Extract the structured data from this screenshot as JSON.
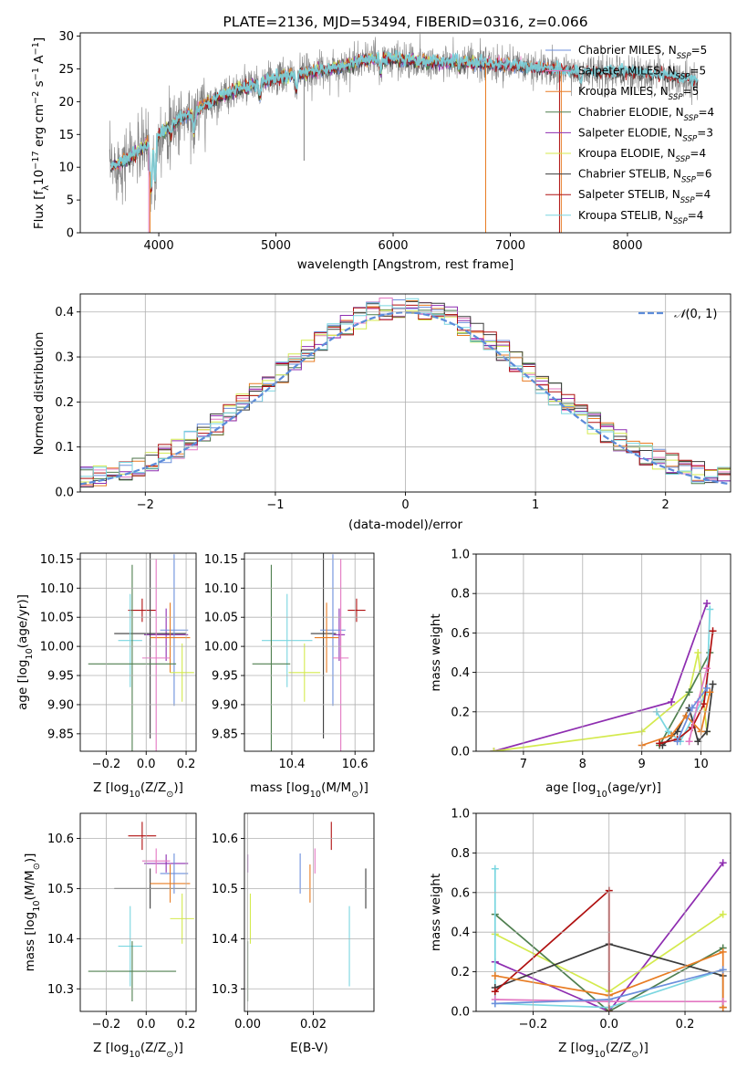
{
  "figure_title": "PLATE=2136, MJD=53494, FIBERID=0316, z=0.066",
  "colors": {
    "Chabrier MILES": "#6c8fdc",
    "Salpeter MILES": "#e377c2",
    "Kroupa MILES": "#e87c23",
    "Chabrier ELODIE": "#4f7f4f",
    "Salpeter ELODIE": "#8e2db0",
    "Kroupa ELODIE": "#d4ea4e",
    "Chabrier STELIB": "#3b3b3b",
    "Salpeter STELIB": "#b01010",
    "Kroupa STELIB": "#7ad6e0",
    "data": "#7f7f7f",
    "normal": "#5b8bd9"
  },
  "chart_data": [
    {
      "id": "spectrum",
      "type": "line",
      "title": "PLATE=2136, MJD=53494, FIBERID=0316, z=0.066",
      "xlabel": "wavelength [Angstrom, rest frame]",
      "ylabel_parts": [
        "Flux [f",
        "λ",
        "10",
        "−17",
        " erg cm",
        "−2",
        " s",
        "−1",
        " A",
        "−1",
        "]"
      ],
      "xlim": [
        3330,
        8880
      ],
      "ylim": [
        0,
        30.5
      ],
      "xticks": [
        "4000",
        "5000",
        "6000",
        "7000",
        "8000"
      ],
      "yticks": [
        "0",
        "5",
        "10",
        "15",
        "20",
        "25",
        "30"
      ],
      "legend_position": "right",
      "legend": [
        {
          "name": "Chabrier MILES",
          "nssp": "5"
        },
        {
          "name": "Salpeter MILES",
          "nssp": "5"
        },
        {
          "name": "Kroupa MILES",
          "nssp": "5"
        },
        {
          "name": "Chabrier ELODIE",
          "nssp": "4"
        },
        {
          "name": "Salpeter ELODIE",
          "nssp": "3"
        },
        {
          "name": "Kroupa ELODIE",
          "nssp": "4"
        },
        {
          "name": "Chabrier STELIB",
          "nssp": "6"
        },
        {
          "name": "Salpeter STELIB",
          "nssp": "4"
        },
        {
          "name": "Kroupa STELIB",
          "nssp": "4"
        }
      ],
      "continuum_points": [
        [
          3600,
          10
        ],
        [
          3700,
          11
        ],
        [
          3800,
          12
        ],
        [
          3900,
          13.5
        ],
        [
          4000,
          15
        ],
        [
          4100,
          16.5
        ],
        [
          4200,
          17.5
        ],
        [
          4300,
          18.5
        ],
        [
          4400,
          19.5
        ],
        [
          4500,
          20.5
        ],
        [
          4700,
          22
        ],
        [
          5000,
          23.5
        ],
        [
          5300,
          24.5
        ],
        [
          5600,
          25.5
        ],
        [
          5800,
          26.5
        ],
        [
          6000,
          26.5
        ],
        [
          6300,
          26
        ],
        [
          6600,
          26
        ],
        [
          7000,
          25.5
        ],
        [
          7300,
          25
        ],
        [
          7600,
          24.5
        ],
        [
          8000,
          24.5
        ],
        [
          8300,
          24
        ],
        [
          8600,
          23.2
        ]
      ],
      "absorption_features": [
        [
          3934,
          8
        ],
        [
          3968,
          7
        ],
        [
          4102,
          2
        ],
        [
          4300,
          3
        ],
        [
          4861,
          2
        ],
        [
          5175,
          2.5
        ],
        [
          5893,
          2
        ],
        [
          6563,
          1
        ],
        [
          7600,
          1.5
        ]
      ],
      "spikes": [
        [
          3915,
          0,
          "Salpeter MILES"
        ],
        [
          3925,
          0,
          "Kroupa MILES"
        ],
        [
          5240,
          11,
          "data"
        ],
        [
          6790,
          0,
          "Kroupa MILES"
        ],
        [
          7420,
          0,
          "Salpeter STELIB"
        ],
        [
          7435,
          0,
          "Kroupa MILES"
        ]
      ],
      "data_noise_amplitude": 2.2,
      "data_wavelength_range": [
        3580,
        8600
      ],
      "model_wavelength_range": [
        3600,
        7500
      ],
      "model_offset_range": [
        7500,
        8600
      ]
    },
    {
      "id": "residuals",
      "type": "histogram",
      "xlabel": "(data-model)/error",
      "ylabel": "Normed distribution",
      "xlim": [
        -2.5,
        2.5
      ],
      "ylim": [
        0,
        0.44
      ],
      "xticks": [
        "−2",
        "−1",
        "0",
        "1",
        "2"
      ],
      "xtick_values": [
        -2,
        -1,
        0,
        1,
        2
      ],
      "yticks": [
        "0.0",
        "0.1",
        "0.2",
        "0.3",
        "0.4"
      ],
      "ytick_values": [
        0,
        0.1,
        0.2,
        0.3,
        0.4
      ],
      "grid": true,
      "bins": [
        -2.5,
        2.5,
        50
      ],
      "normal_label_parts": [
        "𝒩",
        "(0, 1)"
      ],
      "normal_style": "dashed"
    },
    {
      "id": "age_vs_Z",
      "type": "errorbar",
      "xlabel_parts": [
        "Z [log",
        "10",
        "(Z/Z",
        "⊙",
        ")]"
      ],
      "ylabel_parts": [
        "age  [log",
        "10",
        "(age/yr)]"
      ],
      "xlim": [
        -0.33,
        0.25
      ],
      "ylim": [
        9.82,
        10.16
      ],
      "xticks": [
        "−0.2",
        "0.0",
        "0.2"
      ],
      "xtick_values": [
        -0.2,
        0,
        0.2
      ],
      "yticks": [
        "9.85",
        "9.90",
        "9.95",
        "10.00",
        "10.05",
        "10.10",
        "10.15"
      ],
      "ytick_values": [
        9.85,
        9.9,
        9.95,
        10.0,
        10.05,
        10.1,
        10.15
      ],
      "grid": true
    },
    {
      "id": "age_vs_mass",
      "type": "errorbar",
      "xlabel_parts": [
        "mass [log",
        "10",
        "(M/M",
        "⊙",
        ")]"
      ],
      "xlim": [
        10.25,
        10.66
      ],
      "ylim": [
        9.82,
        10.16
      ],
      "xticks": [
        "10.4",
        "10.6"
      ],
      "xtick_values": [
        10.4,
        10.6
      ],
      "yticks": [
        "9.85",
        "9.90",
        "9.95",
        "10.00",
        "10.05",
        "10.10",
        "10.15"
      ],
      "ytick_values": [
        9.85,
        9.9,
        9.95,
        10.0,
        10.05,
        10.1,
        10.15
      ],
      "grid": true
    },
    {
      "id": "weight_vs_age",
      "type": "line",
      "xlabel_parts": [
        "age  [log",
        "10",
        "(age/yr)]"
      ],
      "ylabel": "mass weight",
      "xlim": [
        6.2,
        10.5
      ],
      "ylim": [
        0,
        1
      ],
      "xticks": [
        "7",
        "8",
        "9",
        "10"
      ],
      "xtick_values": [
        7,
        8,
        9,
        10
      ],
      "yticks": [
        "0.0",
        "0.2",
        "0.4",
        "0.6",
        "0.8",
        "1.0"
      ],
      "ytick_values": [
        0,
        0.2,
        0.4,
        0.6,
        0.8,
        1.0
      ],
      "grid": true,
      "series": [
        {
          "model": "Salpeter ELODIE",
          "x": [
            6.5,
            9.5,
            10.1
          ],
          "y": [
            0.0,
            0.25,
            0.75
          ]
        },
        {
          "model": "Kroupa ELODIE",
          "x": [
            6.5,
            9.0,
            9.8,
            9.95,
            10.1
          ],
          "y": [
            0.0,
            0.1,
            0.3,
            0.5,
            0.1
          ]
        },
        {
          "model": "Chabrier ELODIE",
          "x": [
            9.3,
            9.8,
            10.15
          ],
          "y": [
            0.03,
            0.3,
            0.5
          ]
        },
        {
          "model": "Kroupa STELIB",
          "x": [
            9.25,
            9.45,
            9.65,
            10.1,
            10.15
          ],
          "y": [
            0.2,
            0.1,
            0.05,
            0.3,
            0.72
          ]
        },
        {
          "model": "Chabrier STELIB",
          "x": [
            9.35,
            9.6,
            9.8,
            9.95,
            10.1,
            10.2
          ],
          "y": [
            0.03,
            0.1,
            0.22,
            0.05,
            0.1,
            0.34
          ]
        },
        {
          "model": "Salpeter STELIB",
          "x": [
            9.3,
            9.6,
            9.85,
            10.05,
            10.2
          ],
          "y": [
            0.04,
            0.06,
            0.12,
            0.24,
            0.61
          ]
        },
        {
          "model": "Kroupa MILES",
          "x": [
            9.0,
            9.5,
            9.75,
            10.0,
            10.15
          ],
          "y": [
            0.03,
            0.08,
            0.18,
            0.1,
            0.3
          ]
        },
        {
          "model": "Salpeter MILES",
          "x": [
            9.8,
            9.95,
            10.1
          ],
          "y": [
            0.05,
            0.25,
            0.42
          ]
        },
        {
          "model": "Chabrier MILES",
          "x": [
            9.6,
            9.85,
            10.1
          ],
          "y": [
            0.05,
            0.22,
            0.32
          ]
        }
      ]
    },
    {
      "id": "mass_vs_Z",
      "type": "errorbar",
      "xlabel_parts": [
        "Z [log",
        "10",
        "(Z/Z",
        "⊙",
        ")]"
      ],
      "ylabel_parts": [
        "mass [log",
        "10",
        "(M/M",
        "⊙",
        ")]"
      ],
      "xlim": [
        -0.33,
        0.25
      ],
      "ylim": [
        10.255,
        10.65
      ],
      "xticks": [
        "−0.2",
        "0.0",
        "0.2"
      ],
      "xtick_values": [
        -0.2,
        0,
        0.2
      ],
      "yticks": [
        "10.3",
        "10.4",
        "10.5",
        "10.6"
      ],
      "ytick_values": [
        10.3,
        10.4,
        10.5,
        10.6
      ],
      "grid": true
    },
    {
      "id": "mass_vs_ebv",
      "type": "errorbar",
      "xlabel": "E(B-V)",
      "xlim": [
        -0.001,
        0.0385
      ],
      "ylim": [
        10.255,
        10.65
      ],
      "xticks": [
        "0.00",
        "0.02"
      ],
      "xtick_values": [
        0,
        0.02
      ],
      "yticks": [
        "10.3",
        "10.4",
        "10.5",
        "10.6"
      ],
      "ytick_values": [
        10.3,
        10.4,
        10.5,
        10.6
      ],
      "grid": true
    },
    {
      "id": "weight_vs_Z",
      "type": "line",
      "xlabel_parts": [
        "Z [log",
        "10",
        "(Z/Z",
        "⊙",
        ")]"
      ],
      "ylabel": "mass weight",
      "xlim": [
        -0.35,
        0.32
      ],
      "ylim": [
        0,
        1
      ],
      "xticks": [
        "−0.2",
        "0.0",
        "0.2"
      ],
      "xtick_values": [
        -0.2,
        0,
        0.2
      ],
      "yticks": [
        "0.0",
        "0.2",
        "0.4",
        "0.6",
        "0.8",
        "1.0"
      ],
      "ytick_values": [
        0,
        0.2,
        0.4,
        0.6,
        0.8,
        1.0
      ],
      "grid": true,
      "series": [
        {
          "model": "Salpeter ELODIE",
          "x": [
            -0.3,
            0.0,
            0.3
          ],
          "y": [
            0.25,
            0.0,
            0.75
          ]
        },
        {
          "model": "Kroupa ELODIE",
          "x": [
            -0.3,
            0.0,
            0.3
          ],
          "y": [
            0.39,
            0.1,
            0.49
          ]
        },
        {
          "model": "Chabrier ELODIE",
          "x": [
            -0.3,
            0.0,
            0.3
          ],
          "y": [
            0.49,
            0.0,
            0.32
          ]
        },
        {
          "model": "Kroupa STELIB",
          "x": [
            -0.3,
            -0.3,
            0.0,
            0.3
          ],
          "y": [
            0.72,
            0.04,
            0.02,
            0.21
          ]
        },
        {
          "model": "Chabrier STELIB",
          "x": [
            -0.3,
            0.0,
            0.3,
            0.3
          ],
          "y": [
            0.12,
            0.34,
            0.18,
            0.02
          ]
        },
        {
          "model": "Salpeter STELIB",
          "x": [
            -0.3,
            0.0,
            0.0
          ],
          "y": [
            0.1,
            0.61,
            0.0
          ]
        },
        {
          "model": "Kroupa MILES",
          "x": [
            -0.3,
            0.0,
            0.3,
            0.3
          ],
          "y": [
            0.18,
            0.08,
            0.3,
            0.02
          ]
        },
        {
          "model": "Salpeter MILES",
          "x": [
            -0.3,
            0.0,
            0.3
          ],
          "y": [
            0.06,
            0.05,
            0.05
          ]
        },
        {
          "model": "Chabrier MILES",
          "x": [
            -0.3,
            0.0,
            0.3
          ],
          "y": [
            0.04,
            0.06,
            0.21
          ]
        }
      ]
    }
  ],
  "errorbar_models": [
    {
      "model": "Salpeter STELIB",
      "Z": -0.02,
      "Zerr": 0.07,
      "age": 10.062,
      "ageerr": 0.02,
      "mass": 10.605,
      "masserr": 0.028,
      "ebv": 0.0255,
      "ebverr": 0.0
    },
    {
      "model": "Salpeter ELODIE",
      "Z": 0.1,
      "Zerr": 0.11,
      "age": 10.02,
      "ageerr": 0.045,
      "mass": 10.55,
      "masserr": 0.018,
      "ebv": 0.0,
      "ebverr": 0.0
    },
    {
      "model": "Chabrier STELIB",
      "Z": 0.02,
      "Zerr": 0.18,
      "age": 10.022,
      "ageerr": 0.18,
      "mass": 10.5,
      "masserr": 0.04,
      "ebv": 0.036,
      "ebverr": 0.0
    },
    {
      "model": "Chabrier MILES",
      "Z": 0.14,
      "Zerr": 0.07,
      "age": 10.028,
      "ageerr": 0.13,
      "mass": 10.53,
      "masserr": 0.04,
      "ebv": 0.016,
      "ebverr": 0.0
    },
    {
      "model": "Kroupa MILES",
      "Z": 0.12,
      "Zerr": 0.1,
      "age": 10.015,
      "ageerr": 0.06,
      "mass": 10.51,
      "masserr": 0.038,
      "ebv": 0.019,
      "ebverr": 0.0
    },
    {
      "model": "Salpeter MILES",
      "Z": 0.05,
      "Zerr": 0.07,
      "age": 9.98,
      "ageerr": 0.17,
      "mass": 10.555,
      "masserr": 0.025,
      "ebv": 0.0205,
      "ebverr": 0.0
    },
    {
      "model": "Kroupa ELODIE",
      "Z": 0.18,
      "Zerr": 0.06,
      "age": 9.955,
      "ageerr": 0.05,
      "mass": 10.44,
      "masserr": 0.05,
      "ebv": 0.0008,
      "ebverr": 0.0
    },
    {
      "model": "Kroupa STELIB",
      "Z": -0.08,
      "Zerr": 0.06,
      "age": 10.01,
      "ageerr": 0.08,
      "mass": 10.385,
      "masserr": 0.08,
      "ebv": 0.031,
      "ebverr": 0.0
    },
    {
      "model": "Chabrier ELODIE",
      "Z": -0.07,
      "Zerr": 0.22,
      "age": 9.97,
      "ageerr": 0.17,
      "mass": 10.335,
      "masserr": 0.06,
      "ebv": 0.0,
      "ebverr": 0.0
    }
  ]
}
